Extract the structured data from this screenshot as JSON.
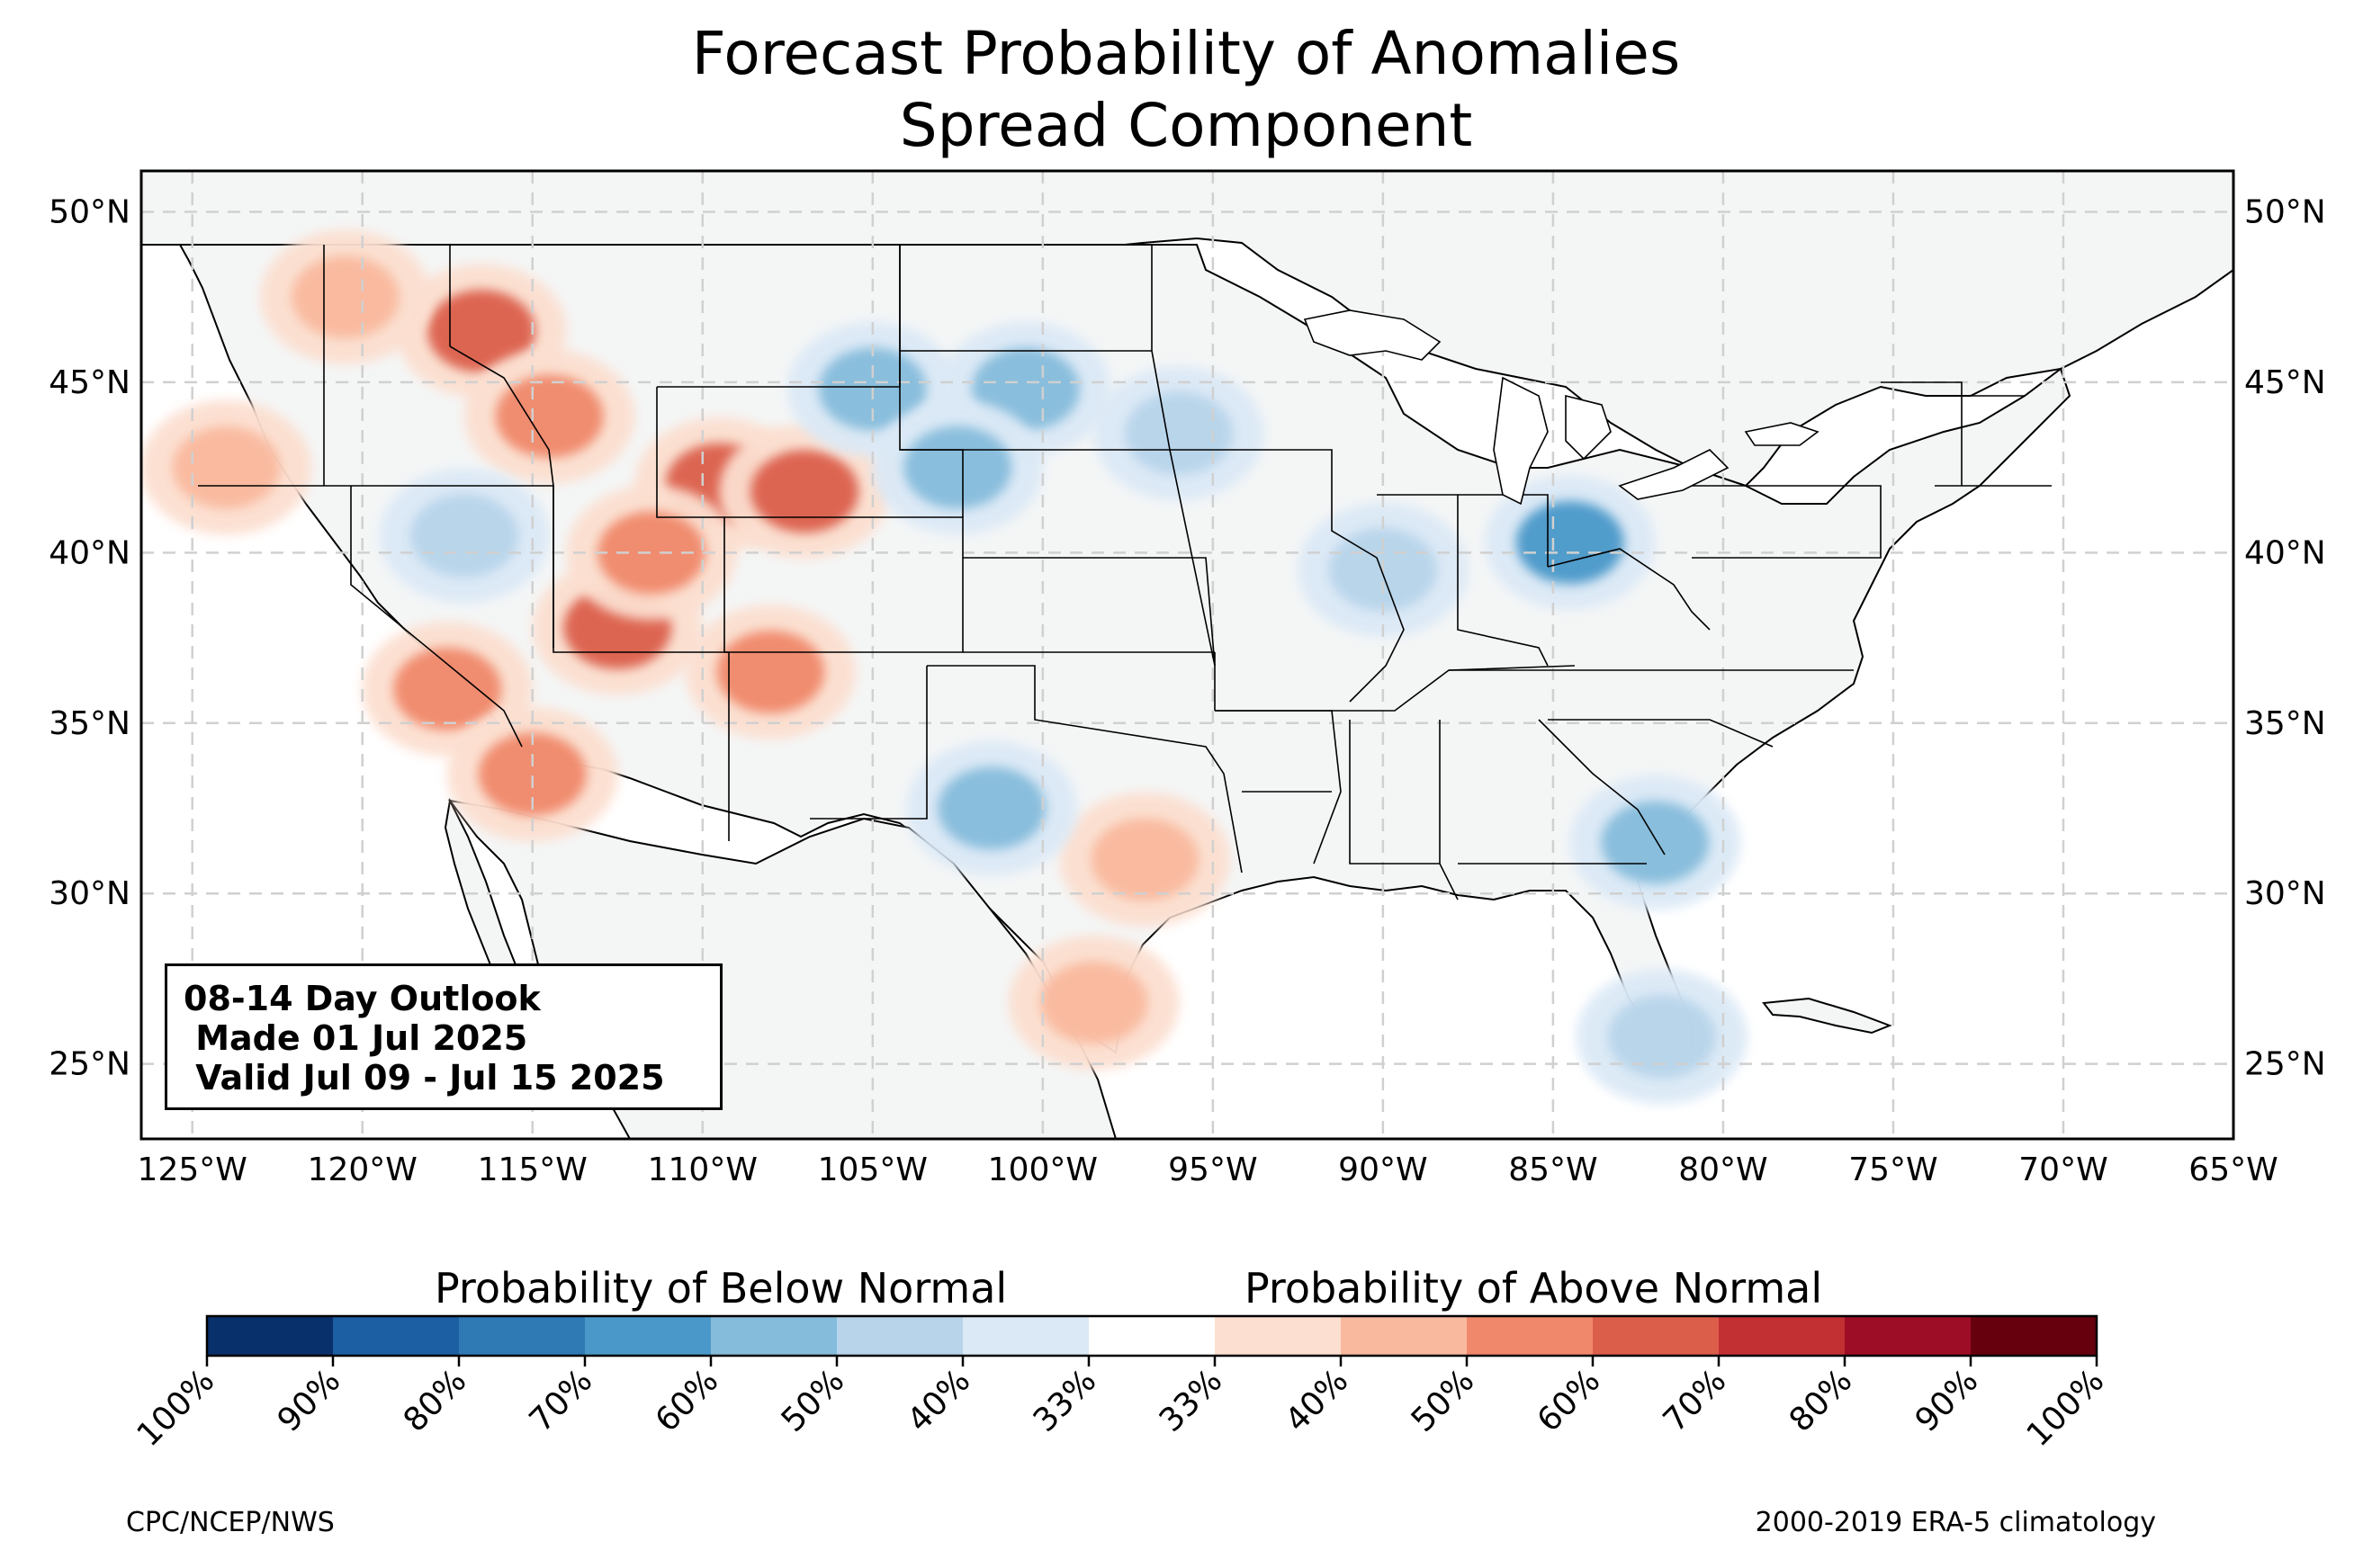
{
  "title": {
    "line1": "Forecast Probability of Anomalies",
    "line2": "Spread Component"
  },
  "map": {
    "extent": {
      "lon": [
        -126.5,
        -65
      ],
      "lat": [
        22.8,
        51.2
      ]
    },
    "lat_ticks": [
      {
        "value": 25,
        "label": "25°N"
      },
      {
        "value": 30,
        "label": "30°N"
      },
      {
        "value": 35,
        "label": "35°N"
      },
      {
        "value": 40,
        "label": "40°N"
      },
      {
        "value": 45,
        "label": "45°N"
      },
      {
        "value": 50,
        "label": "50°N"
      }
    ],
    "lon_ticks": [
      {
        "value": -125,
        "label": "125°W"
      },
      {
        "value": -120,
        "label": "120°W"
      },
      {
        "value": -115,
        "label": "115°W"
      },
      {
        "value": -110,
        "label": "110°W"
      },
      {
        "value": -105,
        "label": "105°W"
      },
      {
        "value": -100,
        "label": "100°W"
      },
      {
        "value": -95,
        "label": "95°W"
      },
      {
        "value": -90,
        "label": "90°W"
      },
      {
        "value": -85,
        "label": "85°W"
      },
      {
        "value": -80,
        "label": "80°W"
      },
      {
        "value": -75,
        "label": "75°W"
      },
      {
        "value": -70,
        "label": "70°W"
      },
      {
        "value": -65,
        "label": "65°W"
      }
    ],
    "gridlines": true,
    "colors": {
      "land": "#f4f6f6",
      "ocean": "#ffffff",
      "grid": "#d0d0d0",
      "border": "#000000"
    }
  },
  "outlook": {
    "line1": "08-14 Day Outlook",
    "line2": " Made 01 Jul 2025",
    "line3": " Valid Jul 09 - Jul 15 2025"
  },
  "anomalies": {
    "above": [
      {
        "lon": -116.5,
        "lat": 46.5,
        "level": 60
      },
      {
        "lon": -114.5,
        "lat": 44.0,
        "level": 50
      },
      {
        "lon": -112.5,
        "lat": 37.8,
        "level": 60
      },
      {
        "lon": -109.5,
        "lat": 42.0,
        "level": 60
      },
      {
        "lon": -107.0,
        "lat": 41.8,
        "level": 60
      },
      {
        "lon": -108.0,
        "lat": 36.5,
        "level": 50
      },
      {
        "lon": -117.5,
        "lat": 36.0,
        "level": 50
      },
      {
        "lon": -115.0,
        "lat": 33.5,
        "level": 50
      },
      {
        "lon": -124.0,
        "lat": 42.5,
        "level": 40
      },
      {
        "lon": -120.5,
        "lat": 47.5,
        "level": 40
      },
      {
        "lon": -111.5,
        "lat": 40.0,
        "level": 50
      },
      {
        "lon": -98.5,
        "lat": 26.8,
        "level": 40
      },
      {
        "lon": -97.0,
        "lat": 31.0,
        "level": 40
      }
    ],
    "below": [
      {
        "lon": -105.0,
        "lat": 44.8,
        "level": 50
      },
      {
        "lon": -100.5,
        "lat": 44.8,
        "level": 50
      },
      {
        "lon": -102.5,
        "lat": 42.5,
        "level": 50
      },
      {
        "lon": -84.5,
        "lat": 40.3,
        "level": 60
      },
      {
        "lon": -101.5,
        "lat": 32.5,
        "level": 50
      },
      {
        "lon": -82.0,
        "lat": 31.5,
        "level": 50
      },
      {
        "lon": -96.0,
        "lat": 43.5,
        "level": 40
      },
      {
        "lon": -90.0,
        "lat": 39.5,
        "level": 40
      },
      {
        "lon": -117.0,
        "lat": 40.5,
        "level": 40
      },
      {
        "lon": -81.8,
        "lat": 25.8,
        "level": 40
      }
    ]
  },
  "colorbar": {
    "below_title": "Probability of Below Normal",
    "above_title": "Probability of Above Normal",
    "colors": [
      "#08306b",
      "#1c5fa2",
      "#2f79b5",
      "#4a98c9",
      "#85bcdb",
      "#b7d4ea",
      "#dbe9f6",
      "#ffffff",
      "#fcdfd0",
      "#f9b99e",
      "#f0886b",
      "#db5e4b",
      "#c23034",
      "#9d0d25",
      "#67000d"
    ],
    "tick_labels": [
      "100%",
      "90%",
      "80%",
      "70%",
      "60%",
      "50%",
      "40%",
      "33%",
      "33%",
      "40%",
      "50%",
      "60%",
      "70%",
      "80%",
      "90%",
      "100%"
    ]
  },
  "footer": {
    "left": "CPC/NCEP/NWS",
    "right": "2000-2019 ERA-5 climatology"
  }
}
